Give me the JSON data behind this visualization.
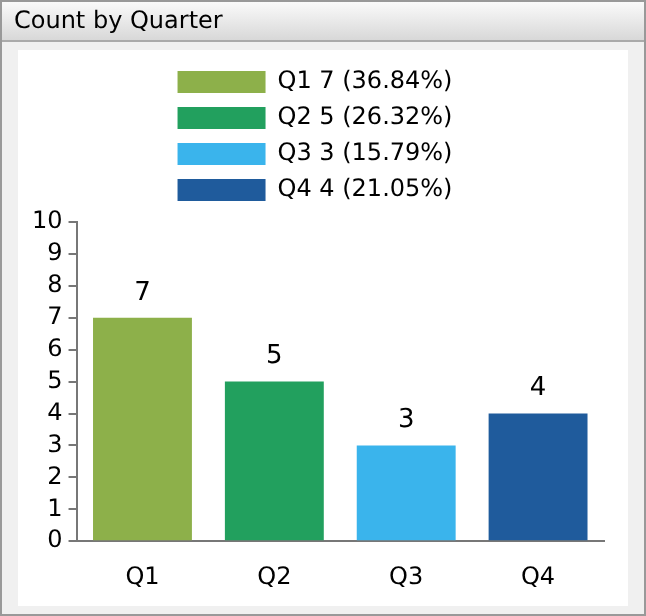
{
  "chart_data": {
    "type": "bar",
    "title": "Count by Quarter",
    "categories": [
      "Q1",
      "Q2",
      "Q3",
      "Q4"
    ],
    "series": [
      {
        "name": "Q1 7 (36.84%)",
        "color": "#8db04a",
        "values": [
          7,
          null,
          null,
          null
        ]
      },
      {
        "name": "Q2 5 (26.32%)",
        "color": "#22a05e",
        "values": [
          null,
          5,
          null,
          null
        ]
      },
      {
        "name": "Q3 3 (15.79%)",
        "color": "#3ab4ec",
        "values": [
          null,
          null,
          3,
          null
        ]
      },
      {
        "name": "Q4 4 (21.05%)",
        "color": "#1f5b9c",
        "values": [
          null,
          null,
          null,
          4
        ]
      }
    ],
    "ylim": [
      0,
      10
    ],
    "yticks": [
      0,
      1,
      2,
      3,
      4,
      5,
      6,
      7,
      8,
      9,
      10
    ],
    "grid": false,
    "legend": "top",
    "data_labels": true
  }
}
